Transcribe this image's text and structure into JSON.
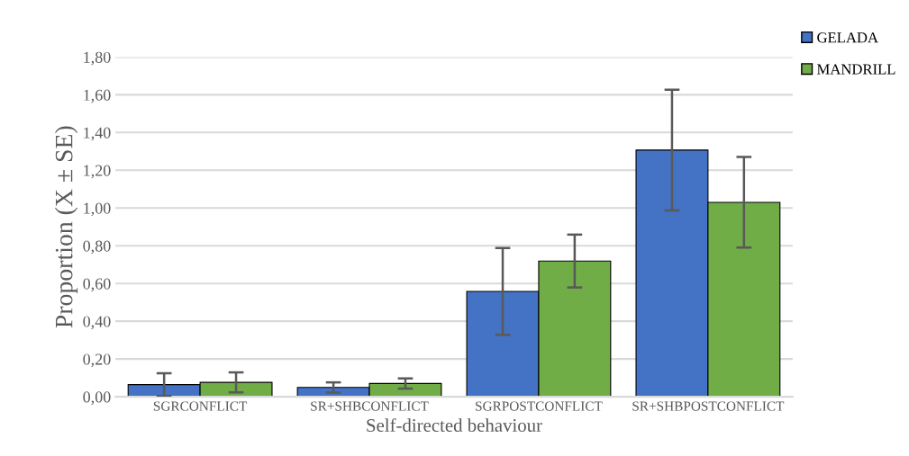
{
  "chart_data": {
    "type": "bar",
    "xlabel": "Self-directed behaviour",
    "ylabel": "Proportion (X ± SE)",
    "categories": [
      "SGRCONFLICT",
      "SR+SHBCONFLICT",
      "SGRPOSTCONFLICT",
      "SR+SHBPOSTCONFLICT"
    ],
    "series": [
      {
        "name": "GELADA",
        "color": "#4472c4",
        "values": [
          0.064,
          0.049,
          0.558,
          1.307
        ],
        "errors": [
          0.06,
          0.027,
          0.23,
          0.32
        ]
      },
      {
        "name": "MANDRILL",
        "color": "#70ad47",
        "values": [
          0.076,
          0.07,
          0.719,
          1.03
        ],
        "errors": [
          0.053,
          0.027,
          0.14,
          0.24
        ]
      }
    ],
    "ylim": [
      0,
      1.8
    ],
    "yticks": [
      {
        "value": 0,
        "label": "0,00"
      },
      {
        "value": 0.2,
        "label": "0,20"
      },
      {
        "value": 0.4,
        "label": "0,40"
      },
      {
        "value": 0.6,
        "label": "0,60"
      },
      {
        "value": 0.8,
        "label": "0,80"
      },
      {
        "value": 1.0,
        "label": "1,00"
      },
      {
        "value": 1.2,
        "label": "1,20"
      },
      {
        "value": 1.4,
        "label": "1,40"
      },
      {
        "value": 1.6,
        "label": "1,60"
      },
      {
        "value": 1.8,
        "label": "1,80"
      }
    ],
    "grid": "y",
    "legend": "top right"
  }
}
